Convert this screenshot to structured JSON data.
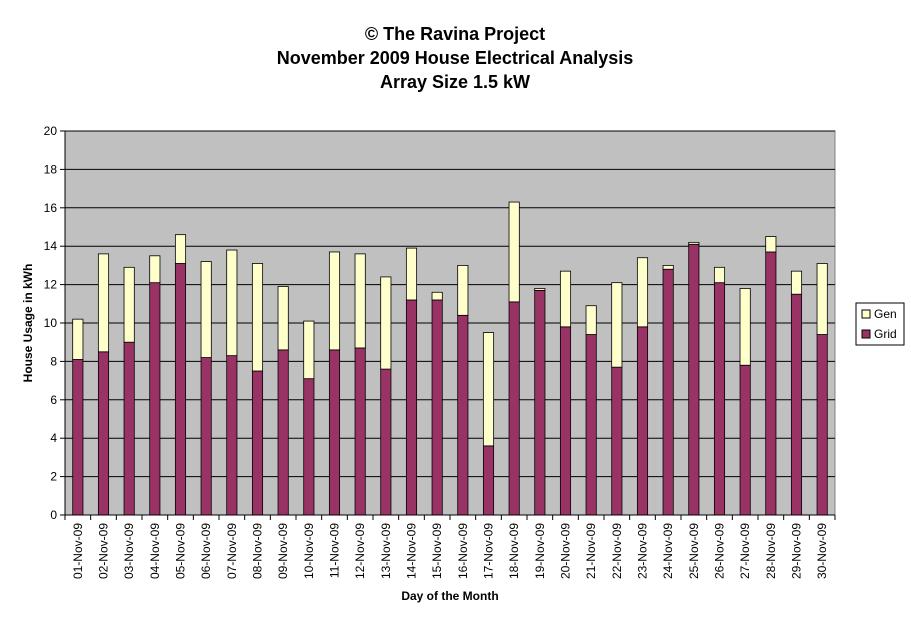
{
  "chart_data": {
    "type": "bar",
    "stacked": true,
    "title_lines": [
      "© The Ravina Project",
      "November 2009 House Electrical Analysis",
      "Array Size 1.5 kW"
    ],
    "xlabel": "Day of the Month",
    "ylabel": "House Usage in kWh",
    "ylim": [
      0,
      20
    ],
    "yticks": [
      0,
      2,
      4,
      6,
      8,
      10,
      12,
      14,
      16,
      18,
      20
    ],
    "grid": true,
    "legend_position": "right",
    "categories": [
      "01-Nov-09",
      "02-Nov-09",
      "03-Nov-09",
      "04-Nov-09",
      "05-Nov-09",
      "06-Nov-09",
      "07-Nov-09",
      "08-Nov-09",
      "09-Nov-09",
      "10-Nov-09",
      "11-Nov-09",
      "12-Nov-09",
      "13-Nov-09",
      "14-Nov-09",
      "15-Nov-09",
      "16-Nov-09",
      "17-Nov-09",
      "18-Nov-09",
      "19-Nov-09",
      "20-Nov-09",
      "21-Nov-09",
      "22-Nov-09",
      "23-Nov-09",
      "24-Nov-09",
      "25-Nov-09",
      "26-Nov-09",
      "27-Nov-09",
      "28-Nov-09",
      "29-Nov-09",
      "30-Nov-09"
    ],
    "series": [
      {
        "name": "Grid",
        "color": "#993366",
        "values": [
          8.1,
          8.5,
          9.0,
          12.1,
          13.1,
          8.2,
          8.3,
          7.5,
          8.6,
          7.1,
          8.6,
          8.7,
          7.6,
          11.2,
          11.2,
          10.4,
          3.6,
          11.1,
          11.7,
          9.8,
          9.4,
          7.7,
          9.8,
          12.8,
          14.1,
          12.1,
          7.8,
          13.7,
          11.5,
          9.4
        ]
      },
      {
        "name": "Gen",
        "color": "#FFFFCC",
        "values": [
          2.1,
          5.1,
          3.9,
          1.4,
          1.5,
          5.0,
          5.5,
          5.6,
          3.3,
          3.0,
          5.1,
          4.9,
          4.8,
          2.7,
          0.4,
          2.6,
          5.9,
          5.2,
          0.1,
          2.9,
          1.5,
          4.4,
          3.6,
          0.2,
          0.1,
          0.8,
          4.0,
          0.8,
          1.2,
          3.7
        ]
      }
    ],
    "colors": {
      "plot_background": "#C0C0C0",
      "grid": "#000000"
    }
  }
}
